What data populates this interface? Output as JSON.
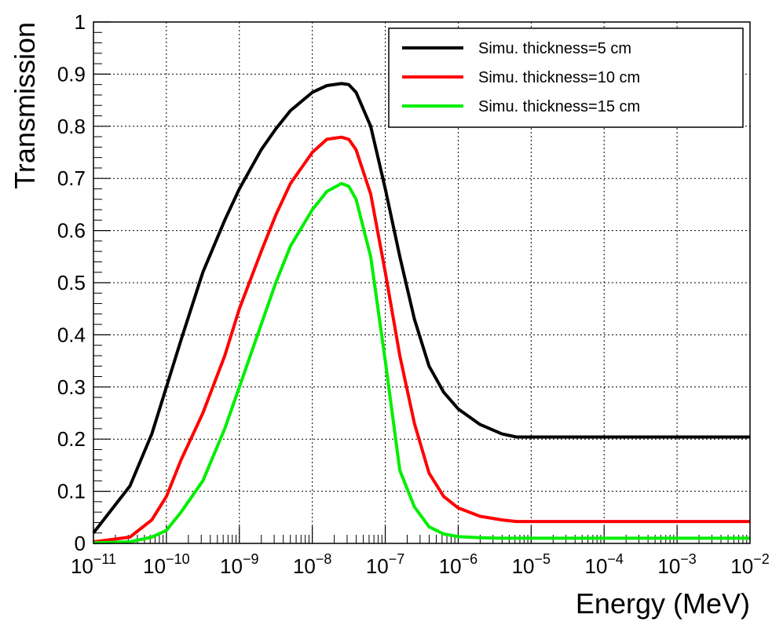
{
  "chart_data": {
    "type": "line",
    "title": "",
    "xlabel": "Energy (MeV)",
    "ylabel": "Transmission",
    "xscale": "log",
    "xlim": [
      1e-11,
      0.01
    ],
    "ylim": [
      0,
      1
    ],
    "grid": true,
    "legend_position": "top-right",
    "x_tick_labels": [
      {
        "base": "10",
        "exp": "−11"
      },
      {
        "base": "10",
        "exp": "−10"
      },
      {
        "base": "10",
        "exp": "−9"
      },
      {
        "base": "10",
        "exp": "−8"
      },
      {
        "base": "10",
        "exp": "−7"
      },
      {
        "base": "10",
        "exp": "−6"
      },
      {
        "base": "10",
        "exp": "−5"
      },
      {
        "base": "10",
        "exp": "−4"
      },
      {
        "base": "10",
        "exp": "−3"
      },
      {
        "base": "10",
        "exp": "−2"
      }
    ],
    "y_tick_labels": [
      "0",
      "0.1",
      "0.2",
      "0.3",
      "0.4",
      "0.5",
      "0.6",
      "0.7",
      "0.8",
      "0.9",
      "1"
    ],
    "series": [
      {
        "name": "Simu. thickness=5 cm",
        "color": "#000000",
        "points": [
          [
            -11,
            0.02
          ],
          [
            -10.5,
            0.11
          ],
          [
            -10.2,
            0.21
          ],
          [
            -10,
            0.3
          ],
          [
            -9.8,
            0.39
          ],
          [
            -9.5,
            0.52
          ],
          [
            -9.2,
            0.62
          ],
          [
            -9,
            0.68
          ],
          [
            -8.7,
            0.755
          ],
          [
            -8.5,
            0.795
          ],
          [
            -8.3,
            0.83
          ],
          [
            -8,
            0.865
          ],
          [
            -7.8,
            0.878
          ],
          [
            -7.6,
            0.882
          ],
          [
            -7.5,
            0.88
          ],
          [
            -7.4,
            0.865
          ],
          [
            -7.2,
            0.8
          ],
          [
            -7,
            0.68
          ],
          [
            -6.8,
            0.55
          ],
          [
            -6.6,
            0.43
          ],
          [
            -6.4,
            0.34
          ],
          [
            -6.2,
            0.29
          ],
          [
            -6,
            0.258
          ],
          [
            -5.7,
            0.228
          ],
          [
            -5.4,
            0.21
          ],
          [
            -5.2,
            0.204
          ],
          [
            -4,
            0.204
          ],
          [
            -3,
            0.204
          ],
          [
            -2,
            0.204
          ]
        ]
      },
      {
        "name": "Simu. thickness=10 cm",
        "color": "#ff0000",
        "points": [
          [
            -11,
            0.003
          ],
          [
            -10.5,
            0.012
          ],
          [
            -10.2,
            0.045
          ],
          [
            -10,
            0.09
          ],
          [
            -9.8,
            0.16
          ],
          [
            -9.5,
            0.25
          ],
          [
            -9.2,
            0.36
          ],
          [
            -9,
            0.45
          ],
          [
            -8.7,
            0.56
          ],
          [
            -8.5,
            0.63
          ],
          [
            -8.3,
            0.69
          ],
          [
            -8,
            0.75
          ],
          [
            -7.8,
            0.775
          ],
          [
            -7.6,
            0.779
          ],
          [
            -7.5,
            0.775
          ],
          [
            -7.4,
            0.755
          ],
          [
            -7.2,
            0.67
          ],
          [
            -7,
            0.52
          ],
          [
            -6.8,
            0.36
          ],
          [
            -6.6,
            0.23
          ],
          [
            -6.4,
            0.135
          ],
          [
            -6.2,
            0.09
          ],
          [
            -6,
            0.068
          ],
          [
            -5.7,
            0.052
          ],
          [
            -5.4,
            0.045
          ],
          [
            -5.2,
            0.042
          ],
          [
            -4,
            0.042
          ],
          [
            -3,
            0.042
          ],
          [
            -2,
            0.042
          ]
        ]
      },
      {
        "name": "Simu. thickness=15 cm",
        "color": "#00ee00",
        "points": [
          [
            -11,
            0.001
          ],
          [
            -10.5,
            0.003
          ],
          [
            -10.2,
            0.012
          ],
          [
            -10,
            0.025
          ],
          [
            -9.8,
            0.06
          ],
          [
            -9.5,
            0.12
          ],
          [
            -9.2,
            0.22
          ],
          [
            -9,
            0.3
          ],
          [
            -8.7,
            0.42
          ],
          [
            -8.5,
            0.5
          ],
          [
            -8.3,
            0.57
          ],
          [
            -8,
            0.64
          ],
          [
            -7.8,
            0.675
          ],
          [
            -7.6,
            0.69
          ],
          [
            -7.5,
            0.685
          ],
          [
            -7.4,
            0.66
          ],
          [
            -7.2,
            0.55
          ],
          [
            -7,
            0.35
          ],
          [
            -6.8,
            0.14
          ],
          [
            -6.6,
            0.07
          ],
          [
            -6.4,
            0.032
          ],
          [
            -6.2,
            0.018
          ],
          [
            -6,
            0.013
          ],
          [
            -5.7,
            0.011
          ],
          [
            -5.4,
            0.01
          ],
          [
            -5.2,
            0.01
          ],
          [
            -4,
            0.01
          ],
          [
            -3,
            0.01
          ],
          [
            -2,
            0.01
          ]
        ]
      }
    ]
  }
}
